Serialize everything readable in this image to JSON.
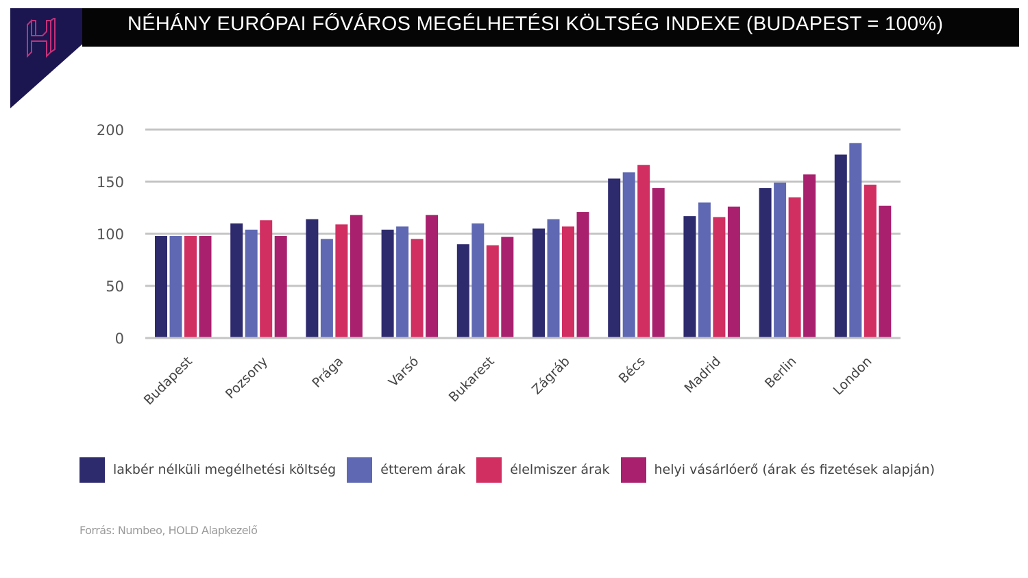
{
  "header": {
    "title": "NÉHÁNY EURÓPAI FŐVÁROS MEGÉLHETÉSI KÖLTSÉG INDEXE (BUDAPEST = 100%)",
    "logo": "H"
  },
  "source": "Forrás: Numbeo, HOLD Alapkezelő",
  "chart_data": {
    "type": "bar",
    "title": "NÉHÁNY EURÓPAI FŐVÁROS MEGÉLHETÉSI KÖLTSÉG INDEXE (BUDAPEST = 100%)",
    "xlabel": "",
    "ylabel": "",
    "ylim": [
      0,
      200
    ],
    "yticks": [
      "0",
      "50",
      "100",
      "150",
      "200"
    ],
    "grid": true,
    "legend_position": "bottom",
    "categories": [
      "Budapest",
      "Pozsony",
      "Prága",
      "Varsó",
      "Bukarest",
      "Zágráb",
      "Bécs",
      "Madrid",
      "Berlin",
      "London"
    ],
    "series": [
      {
        "name": "lakbér nélküli megélhetési költség",
        "color": "#2e2a6e",
        "values": [
          98,
          110,
          114,
          104,
          90,
          105,
          153,
          117,
          144,
          176
        ]
      },
      {
        "name": "étterem árak",
        "color": "#5f68b2",
        "values": [
          98,
          104,
          95,
          107,
          110,
          114,
          159,
          130,
          149,
          187
        ]
      },
      {
        "name": "élelmiszer árak",
        "color": "#d12e62",
        "values": [
          98,
          113,
          109,
          95,
          89,
          107,
          166,
          116,
          135,
          147
        ]
      },
      {
        "name": "helyi vásárlóerő (árak és fizetések alapján)",
        "color": "#a8206e",
        "values": [
          98,
          98,
          118,
          118,
          97,
          121,
          144,
          126,
          157,
          127
        ]
      }
    ]
  }
}
